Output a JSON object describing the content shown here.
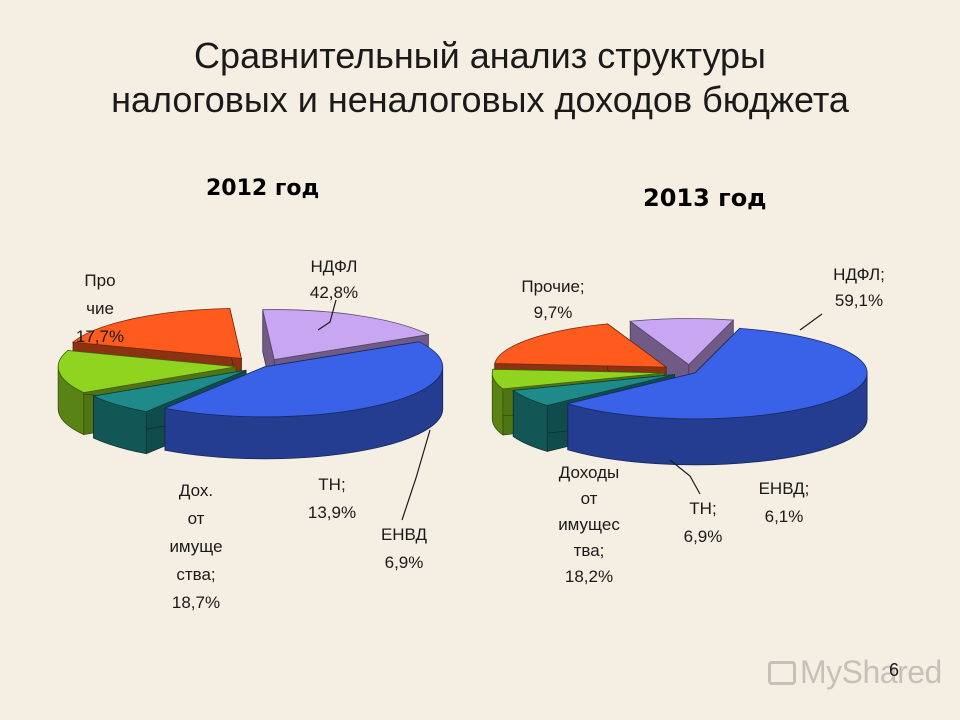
{
  "slide": {
    "title_line1": "Сравнительный анализ структуры",
    "title_line2": "налоговых и неналоговых доходов бюджета",
    "page_number": "6",
    "watermark": "MyShared"
  },
  "colors": {
    "ndfl": "#3a62e8",
    "envd": "#1f8a8a",
    "tn": "#90d420",
    "property": "#ff5b1f",
    "other": "#c9a6f2"
  },
  "chart_data": [
    {
      "type": "pie",
      "title": "2012 год",
      "categories": [
        "НДФЛ",
        "ЕНВД",
        "ТН",
        "Дох. от имуще ства",
        "Про чие"
      ],
      "values": [
        42.8,
        6.9,
        13.9,
        18.7,
        17.7
      ],
      "labels": [
        {
          "lines": [
            "НДФЛ",
            "42,8%"
          ]
        },
        {
          "lines": [
            "ЕНВД",
            "6,9%"
          ]
        },
        {
          "lines": [
            "ТН;",
            "13,9%"
          ]
        },
        {
          "lines": [
            "Дох.",
            "от",
            "имуще",
            "ства;",
            "18,7%"
          ]
        },
        {
          "lines": [
            "Про",
            "чие",
            "17,7%"
          ]
        }
      ]
    },
    {
      "type": "pie",
      "title": "2013 год",
      "categories": [
        "НДФЛ",
        "ЕНВД",
        "ТН",
        "Доходы от имущества",
        "Прочие"
      ],
      "values": [
        59.1,
        6.1,
        6.9,
        18.2,
        9.7
      ],
      "labels": [
        {
          "lines": [
            "НДФЛ;",
            "59,1%"
          ]
        },
        {
          "lines": [
            "ЕНВД;",
            "6,1%"
          ]
        },
        {
          "lines": [
            "ТН;",
            "6,9%"
          ]
        },
        {
          "lines": [
            "Доходы",
            "от",
            "имущес",
            "тва;",
            "18,2%"
          ]
        },
        {
          "lines": [
            "Прочие;",
            "9,7%"
          ]
        }
      ]
    }
  ]
}
